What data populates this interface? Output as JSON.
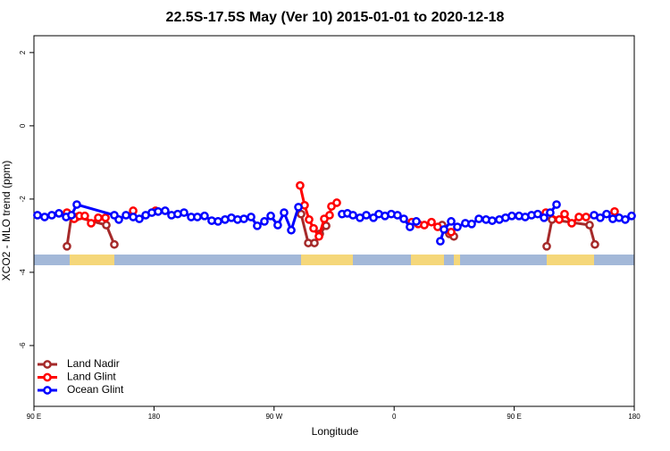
{
  "chart_data": {
    "type": "line",
    "title": "22.5S-17.5S May (Ver 10)   2015-01-01 to 2020-12-18",
    "x_label": "Longitude",
    "y_label": "XCO2 - MLO trend (ppm)",
    "xlim": [
      90,
      450
    ],
    "ylim": [
      -7.66,
      2.46
    ],
    "xticks": [
      {
        "value": 90,
        "label": "90 E"
      },
      {
        "value": 162,
        "label": "180"
      },
      {
        "value": 234,
        "label": "90 W"
      },
      {
        "value": 306,
        "label": "0"
      },
      {
        "value": 378,
        "label": "90 E"
      },
      {
        "value": 450,
        "label": "180"
      }
    ],
    "yticks": [
      2,
      0,
      -2,
      -4,
      -6
    ],
    "legend": "lower left",
    "series": [
      {
        "name": "Land Nadir",
        "color": "#a52a2a",
        "x": [
          109.8,
          112.5,
          115.7,
          133.4,
          138.2,
          null,
          250.2,
          254.5,
          258.2,
          261.4,
          265.2,
          null,
          334.8,
          339.1,
          341.8,
          null,
          397.5,
          400.7,
          423.2,
          426.4
        ],
        "values": [
          -3.29,
          -2.46,
          -2.49,
          -2.71,
          -3.24,
          null,
          -2.41,
          -3.2,
          -3.2,
          -2.95,
          -2.73,
          null,
          -2.71,
          -2.95,
          -3.02,
          null,
          -3.29,
          -2.56,
          -2.71,
          -3.24
        ]
      },
      {
        "name": "Land Glint",
        "color": "#ff0000",
        "x": [
          109.8,
          114.1,
          117.3,
          120.5,
          124.3,
          128.6,
          132.9,
          null,
          149.5,
          null,
          162.9,
          null,
          249.6,
          252.3,
          255.0,
          257.7,
          260.9,
          264.1,
          267.3,
          268.4,
          271.6,
          null,
          316.6,
          320.4,
          324.1,
          328.4,
          332.1,
          340.2,
          null,
          397.0,
          405.0,
          408.2,
          412.5,
          416.8,
          421.1,
          null,
          438.2
        ],
        "values": [
          -2.37,
          -2.54,
          -2.46,
          -2.46,
          -2.66,
          -2.51,
          -2.51,
          null,
          -2.32,
          null,
          -2.32,
          null,
          -1.63,
          -2.17,
          -2.56,
          -2.8,
          -3.02,
          -2.54,
          -2.44,
          -2.2,
          -2.1,
          null,
          -2.63,
          -2.68,
          -2.71,
          -2.63,
          -2.76,
          -2.9,
          null,
          -2.37,
          -2.56,
          -2.41,
          -2.66,
          -2.49,
          -2.49,
          null,
          -2.34
        ]
      },
      {
        "name": "Ocean Glint",
        "color": "#0000ff",
        "x": [
          92.1,
          96.4,
          100.7,
          105.0,
          109.3,
          112.5,
          115.7,
          138.2,
          140.9,
          145.2,
          149.5,
          153.2,
          157.0,
          160.7,
          164.5,
          168.7,
          172.5,
          176.2,
          180.0,
          184.3,
          188.0,
          192.3,
          196.6,
          200.4,
          204.6,
          208.4,
          212.1,
          215.9,
          220.2,
          223.9,
          228.2,
          232.0,
          236.2,
          240.0,
          244.3,
          248.6,
          null,
          274.8,
          278.0,
          281.3,
          285.5,
          289.3,
          293.6,
          296.8,
          300.5,
          304.3,
          308.0,
          311.8,
          315.5,
          319.3,
          null,
          333.7,
          335.9,
          340.2,
          343.9,
          348.7,
          352.5,
          356.8,
          361.1,
          364.8,
          369.1,
          372.8,
          376.6,
          380.9,
          384.6,
          388.4,
          392.1,
          395.9,
          399.6,
          403.4,
          null,
          425.9,
          429.6,
          433.4,
          437.1,
          440.9,
          444.6,
          448.4
        ],
        "values": [
          -2.44,
          -2.49,
          -2.44,
          -2.39,
          -2.49,
          -2.44,
          -2.15,
          -2.44,
          -2.56,
          -2.44,
          -2.49,
          -2.54,
          -2.44,
          -2.37,
          -2.34,
          -2.32,
          -2.44,
          -2.41,
          -2.37,
          -2.49,
          -2.49,
          -2.46,
          -2.59,
          -2.61,
          -2.56,
          -2.51,
          -2.56,
          -2.54,
          -2.49,
          -2.73,
          -2.61,
          -2.46,
          -2.71,
          -2.37,
          -2.85,
          -2.22,
          null,
          -2.41,
          -2.39,
          -2.44,
          -2.51,
          -2.44,
          -2.51,
          -2.41,
          -2.46,
          -2.41,
          -2.44,
          -2.54,
          -2.76,
          -2.61,
          null,
          -3.15,
          -2.83,
          -2.61,
          -2.76,
          -2.66,
          -2.68,
          -2.54,
          -2.56,
          -2.59,
          -2.56,
          -2.51,
          -2.46,
          -2.46,
          -2.49,
          -2.44,
          -2.41,
          -2.51,
          -2.37,
          -2.15,
          null,
          -2.44,
          -2.51,
          -2.41,
          -2.54,
          -2.51,
          -2.56,
          -2.46
        ]
      }
    ]
  }
}
